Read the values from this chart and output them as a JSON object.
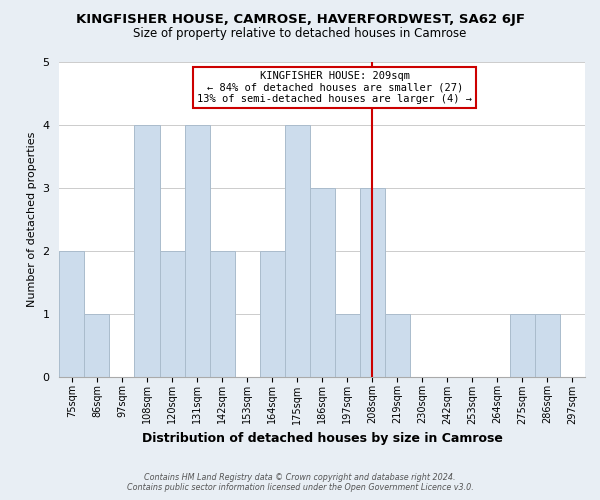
{
  "title": "KINGFISHER HOUSE, CAMROSE, HAVERFORDWEST, SA62 6JF",
  "subtitle": "Size of property relative to detached houses in Camrose",
  "xlabel": "Distribution of detached houses by size in Camrose",
  "ylabel": "Number of detached properties",
  "footer_line1": "Contains HM Land Registry data © Crown copyright and database right 2024.",
  "footer_line2": "Contains public sector information licensed under the Open Government Licence v3.0.",
  "bin_labels": [
    "75sqm",
    "86sqm",
    "97sqm",
    "108sqm",
    "120sqm",
    "131sqm",
    "142sqm",
    "153sqm",
    "164sqm",
    "175sqm",
    "186sqm",
    "197sqm",
    "208sqm",
    "219sqm",
    "230sqm",
    "242sqm",
    "253sqm",
    "264sqm",
    "275sqm",
    "286sqm",
    "297sqm"
  ],
  "bar_values": [
    2,
    1,
    0,
    4,
    2,
    4,
    2,
    0,
    2,
    4,
    3,
    1,
    3,
    1,
    0,
    0,
    0,
    0,
    1,
    1,
    0
  ],
  "bar_color": "#ccdcec",
  "bar_edge_color": "#aabccc",
  "highlight_index": 12,
  "highlight_line_color": "#cc0000",
  "annotation_title": "KINGFISHER HOUSE: 209sqm",
  "annotation_line1": "← 84% of detached houses are smaller (27)",
  "annotation_line2": "13% of semi-detached houses are larger (4) →",
  "annotation_box_color": "#ffffff",
  "annotation_box_edge_color": "#cc0000",
  "ylim": [
    0,
    5
  ],
  "yticks": [
    0,
    1,
    2,
    3,
    4,
    5
  ],
  "background_color": "#e8eef4",
  "plot_bg_color": "#ffffff",
  "grid_color": "#cccccc"
}
